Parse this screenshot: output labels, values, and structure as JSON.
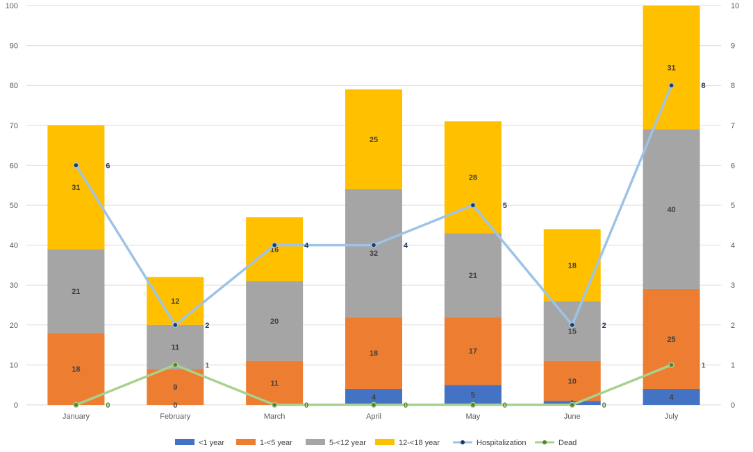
{
  "chart_data": {
    "type": "bar",
    "stacked": true,
    "categories": [
      "January",
      "February",
      "March",
      "April",
      "May",
      "June",
      "July"
    ],
    "series": [
      {
        "name": "<1 year",
        "color": "#4472c4",
        "values": [
          0,
          0,
          0,
          4,
          5,
          1,
          4
        ]
      },
      {
        "name": "1-<5 year",
        "color": "#ed7d31",
        "values": [
          18,
          9,
          11,
          18,
          17,
          10,
          25
        ]
      },
      {
        "name": "5-<12 year",
        "color": "#a5a5a5",
        "values": [
          21,
          11,
          20,
          32,
          21,
          15,
          40
        ]
      },
      {
        "name": "12-<18 year",
        "color": "#ffc000",
        "values": [
          31,
          12,
          16,
          25,
          28,
          18,
          31
        ]
      }
    ],
    "lines": [
      {
        "name": "Hospitalization",
        "color": "#9dc3e6",
        "marker_color": "#1f3864",
        "axis": "right",
        "values": [
          6,
          2,
          4,
          4,
          5,
          2,
          8
        ]
      },
      {
        "name": "Dead",
        "color": "#a9d18e",
        "marker_color": "#548235",
        "axis": "right",
        "values": [
          0,
          1,
          0,
          0,
          0,
          0,
          1
        ]
      }
    ],
    "ylim_left": [
      0,
      100
    ],
    "yticks_left": [
      "0",
      "10",
      "20",
      "30",
      "40",
      "50",
      "60",
      "70",
      "80",
      "90",
      "100"
    ],
    "ylim_right": [
      0,
      10
    ],
    "yticks_right": [
      "0",
      "1",
      "2",
      "3",
      "4",
      "5",
      "6",
      "7",
      "8",
      "9",
      "10"
    ],
    "grid": true,
    "legend": "bottom",
    "title": "",
    "xlabel": "",
    "ylabel": ""
  }
}
